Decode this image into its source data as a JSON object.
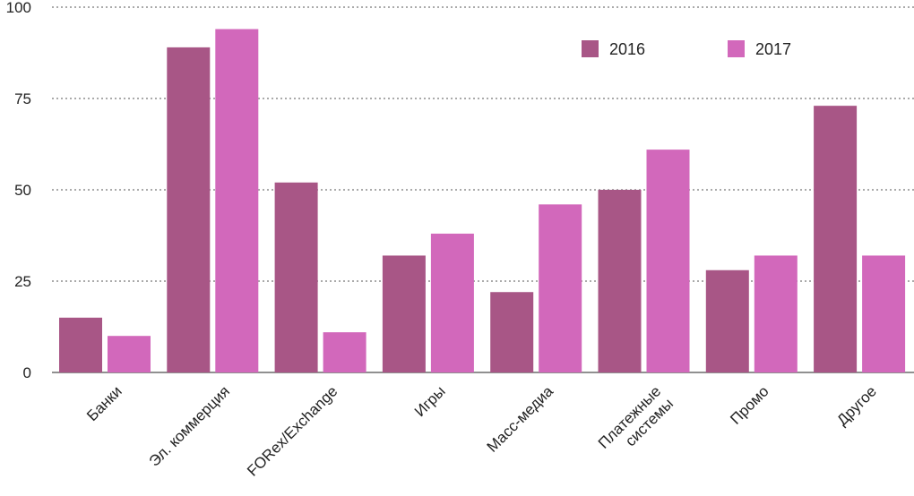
{
  "chart_data": {
    "type": "bar",
    "categories": [
      [
        "Банки"
      ],
      [
        "Эл. коммерция"
      ],
      [
        "FORex/Exchange"
      ],
      [
        "Игры"
      ],
      [
        "Масс-медиа"
      ],
      [
        "Платежные",
        "системы"
      ],
      [
        "Промо"
      ],
      [
        "Другое"
      ]
    ],
    "series": [
      {
        "name": "2016",
        "color": "#a85686",
        "values": [
          15,
          89,
          52,
          32,
          22,
          50,
          28,
          73
        ]
      },
      {
        "name": "2017",
        "color": "#d268bb",
        "values": [
          10,
          94,
          11,
          38,
          46,
          61,
          32,
          32
        ]
      }
    ],
    "yticks": [
      "0",
      "25",
      "50",
      "75",
      "100"
    ],
    "ylim": [
      0,
      100
    ],
    "grid": "horizontal dashed",
    "legend_position": "top-right"
  }
}
